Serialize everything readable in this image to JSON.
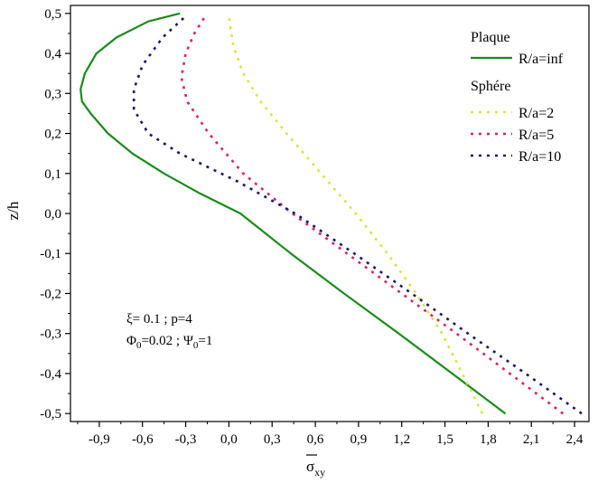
{
  "chart_data": {
    "type": "line",
    "title": "",
    "xlabel_main": "σ",
    "xlabel_sub": "xy",
    "ylabel": "z/h",
    "xlim": [
      -1.1,
      2.5
    ],
    "ylim": [
      -0.52,
      0.52
    ],
    "xticks": [
      "-0,9",
      "-0,6",
      "-0,3",
      "0,0",
      "0,3",
      "0,6",
      "0,9",
      "1,2",
      "1,5",
      "1,8",
      "2,1",
      "2,4"
    ],
    "yticks": [
      "-0,5",
      "-0,4",
      "-0,3",
      "-0,2",
      "-0,1",
      "0,0",
      "0,1",
      "0,2",
      "0,3",
      "0,4",
      "0,5"
    ],
    "legend": {
      "group1_title": "Plaque",
      "group2_title": "Sphére"
    },
    "annotation": {
      "line1": "ξ= 0.1 ; p=4",
      "line2_a": "Φ",
      "line2_a_sub": "0",
      "line2_b": "=0.02 ; Ψ",
      "line2_b_sub": "0",
      "line2_c": "=1"
    },
    "series": [
      {
        "name": "R/a=inf",
        "color": "#1a8a1a",
        "style": "solid",
        "x": [
          1.92,
          1.55,
          1.18,
          0.8,
          0.43,
          0.08,
          -0.2,
          -0.45,
          -0.67,
          -0.84,
          -0.96,
          -1.02,
          -1.03,
          -1.0,
          -0.92,
          -0.78,
          -0.56,
          -0.34
        ],
        "y": [
          -0.5,
          -0.4,
          -0.3,
          -0.2,
          -0.1,
          0.0,
          0.05,
          0.1,
          0.15,
          0.2,
          0.25,
          0.28,
          0.31,
          0.35,
          0.4,
          0.44,
          0.48,
          0.5
        ]
      },
      {
        "name": "R/a=2",
        "color": "#dde24a",
        "style": "dotted",
        "x": [
          1.76,
          1.62,
          1.48,
          1.3,
          1.1,
          0.88,
          0.64,
          0.4,
          0.22,
          0.1,
          0.03,
          0.0
        ],
        "y": [
          -0.5,
          -0.4,
          -0.3,
          -0.2,
          -0.1,
          0.0,
          0.1,
          0.2,
          0.28,
          0.35,
          0.42,
          0.49
        ]
      },
      {
        "name": "R/a=5",
        "color": "#dd2266",
        "style": "dotted",
        "x": [
          2.32,
          1.95,
          1.58,
          1.2,
          0.82,
          0.44,
          0.1,
          -0.14,
          -0.29,
          -0.33,
          -0.3,
          -0.24,
          -0.17
        ],
        "y": [
          -0.5,
          -0.4,
          -0.3,
          -0.2,
          -0.1,
          0.0,
          0.1,
          0.2,
          0.28,
          0.34,
          0.4,
          0.45,
          0.49
        ]
      },
      {
        "name": "R/a=10",
        "color": "#1a1a5a",
        "style": "dotted",
        "x": [
          2.45,
          2.06,
          1.66,
          1.27,
          0.87,
          0.46,
          0.06,
          -0.34,
          -0.56,
          -0.66,
          -0.66,
          -0.6,
          -0.46,
          -0.31
        ],
        "y": [
          -0.5,
          -0.4,
          -0.3,
          -0.2,
          -0.1,
          0.0,
          0.08,
          0.15,
          0.2,
          0.26,
          0.31,
          0.37,
          0.44,
          0.49
        ]
      }
    ]
  }
}
